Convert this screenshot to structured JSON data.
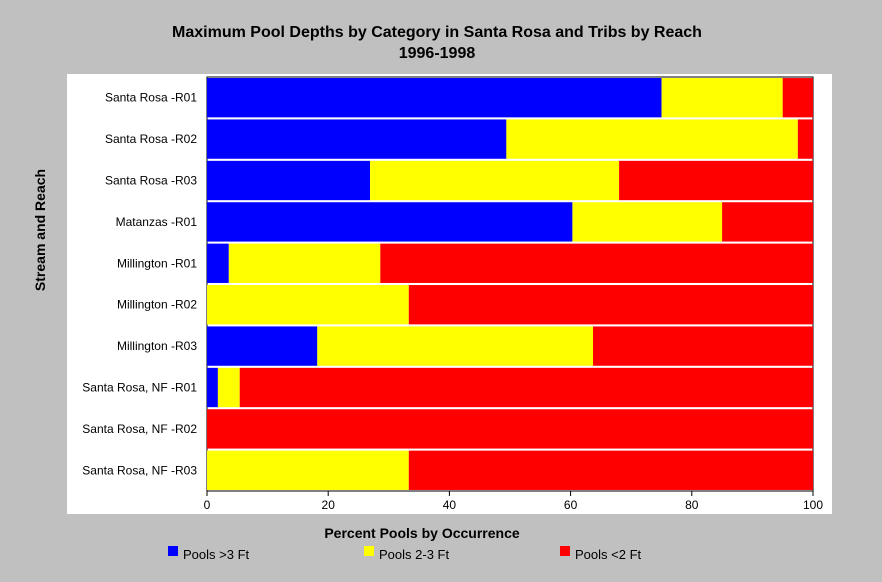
{
  "chart_data": {
    "type": "bar",
    "orientation": "horizontal",
    "stacked": true,
    "title": "Maximum Pool Depths by Category in Santa Rosa and Tribs by Reach",
    "subtitle": "1996-1998",
    "xlabel": "Percent Pools by Occurrence",
    "ylabel": "Stream and Reach",
    "xlim": [
      0,
      100
    ],
    "xticks": [
      0,
      20,
      40,
      60,
      80,
      100
    ],
    "grid": false,
    "legend_position": "bottom",
    "categories": [
      "Santa Rosa -R01",
      "Santa Rosa -R02",
      "Santa Rosa -R03",
      "Matanzas -R01",
      "Millington -R01",
      "Millington -R02",
      "Millington -R03",
      "Santa Rosa, NF -R01",
      "Santa Rosa, NF -R02",
      "Santa Rosa, NF -R03"
    ],
    "series": [
      {
        "name": "Pools >3 Ft",
        "color": "#0000ff",
        "values": [
          75,
          49.4,
          26.9,
          60.3,
          3.6,
          0,
          18.2,
          1.8,
          0,
          0
        ]
      },
      {
        "name": "Pools 2-3 Ft",
        "color": "#ffff00",
        "values": [
          20,
          48.1,
          41.1,
          24.7,
          25,
          33.3,
          45.5,
          3.6,
          0,
          33.3
        ]
      },
      {
        "name": "Pools <2 Ft",
        "color": "#ff0000",
        "values": [
          5,
          2.5,
          32,
          15,
          71.4,
          66.7,
          36.3,
          94.6,
          100,
          66.7
        ]
      }
    ]
  }
}
